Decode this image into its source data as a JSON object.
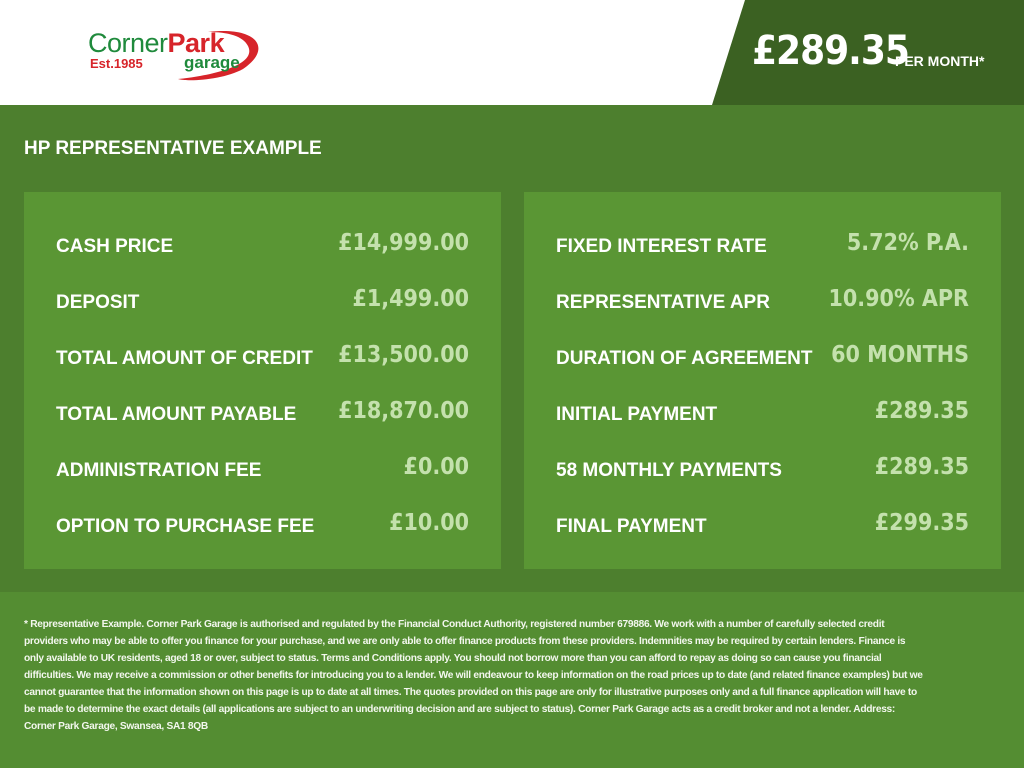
{
  "brand": {
    "name_part1": "Corner",
    "name_part2": "Park",
    "est": "Est.1985",
    "sub": "garage",
    "colors": {
      "green": "#1f8a3c",
      "red": "#d7242a"
    }
  },
  "header": {
    "monthly_price": "£289.35",
    "per_month_label": "PER MONTH*"
  },
  "section_title": "HP REPRESENTATIVE EXAMPLE",
  "left_panel": [
    {
      "label": "CASH PRICE",
      "value": "£14,999.00"
    },
    {
      "label": "DEPOSIT",
      "value": "£1,499.00"
    },
    {
      "label": "TOTAL AMOUNT OF CREDIT",
      "value": "£13,500.00"
    },
    {
      "label": "TOTAL AMOUNT PAYABLE",
      "value": "£18,870.00"
    },
    {
      "label": "ADMINISTRATION FEE",
      "value": "£0.00"
    },
    {
      "label": "OPTION TO PURCHASE FEE",
      "value": "£10.00"
    }
  ],
  "right_panel": [
    {
      "label": "FIXED INTEREST RATE",
      "value": "5.72% P.A."
    },
    {
      "label": "REPRESENTATIVE APR",
      "value": "10.90% APR"
    },
    {
      "label": "DURATION OF AGREEMENT",
      "value": "60 MONTHS"
    },
    {
      "label": "INITIAL PAYMENT",
      "value": "£289.35"
    },
    {
      "label": "58 MONTHLY PAYMENTS",
      "value": "£289.35"
    },
    {
      "label": "FINAL PAYMENT",
      "value": "£299.35"
    }
  ],
  "disclaimer": "* Representative Example. Corner Park Garage is authorised and regulated by the Financial Conduct Authority, registered number 679886. We work with a number of carefully selected credit providers who may be able to offer you finance for your purchase, and we are only able to offer finance products from these providers. Indemnities may be required by certain lenders. Finance is only available to UK residents, aged 18 or over, subject to status. Terms and Conditions apply. You should not borrow more than you can afford to repay as doing so can cause you financial difficulties. We may receive a commission or other benefits for introducing you to a lender. We will endeavour to keep information on the road prices up to date (and related finance examples) but we cannot guarantee that the information shown on this page is up to date at all times. The quotes provided on this page are only for illustrative purposes only and a full finance application will have to be made to determine the exact details (all applications are subject to an underwriting decision and are subject to status). Corner Park Garage acts as a credit broker and not a lender. Address: Corner Park Garage, Swansea, SA1 8QB"
}
